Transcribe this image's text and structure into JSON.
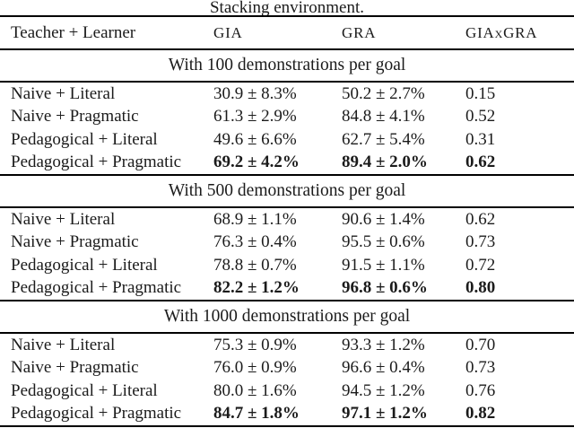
{
  "page": {
    "background": "#ffffff",
    "text_color": "#1b1b1b",
    "rule_color": "#000000"
  },
  "table": {
    "caption": "Stacking environment.",
    "columns": [
      "Teacher + Learner",
      "GIA",
      "GRA",
      "GIAxGRA"
    ],
    "sections": [
      {
        "header": "With 100 demonstrations per goal",
        "rows": [
          {
            "teacher_learner": "Naive + Literal",
            "gia": "30.9 ± 8.3%",
            "gra": "50.2 ± 2.7%",
            "giaxgra": "0.15",
            "bold": false
          },
          {
            "teacher_learner": "Naive + Pragmatic",
            "gia": "61.3 ± 2.9%",
            "gra": "84.8 ± 4.1%",
            "giaxgra": "0.52",
            "bold": false
          },
          {
            "teacher_learner": "Pedagogical + Literal",
            "gia": "49.6 ± 6.6%",
            "gra": "62.7 ± 5.4%",
            "giaxgra": "0.31",
            "bold": false
          },
          {
            "teacher_learner": "Pedagogical + Pragmatic",
            "gia": "69.2 ± 4.2%",
            "gra": "89.4 ± 2.0%",
            "giaxgra": "0.62",
            "bold": true
          }
        ]
      },
      {
        "header": "With 500 demonstrations per goal",
        "rows": [
          {
            "teacher_learner": "Naive + Literal",
            "gia": "68.9 ± 1.1%",
            "gra": "90.6 ± 1.4%",
            "giaxgra": "0.62",
            "bold": false
          },
          {
            "teacher_learner": "Naive + Pragmatic",
            "gia": "76.3 ± 0.4%",
            "gra": "95.5 ± 0.6%",
            "giaxgra": "0.73",
            "bold": false
          },
          {
            "teacher_learner": "Pedagogical + Literal",
            "gia": "78.8 ± 0.7%",
            "gra": "91.5 ± 1.1%",
            "giaxgra": "0.72",
            "bold": false
          },
          {
            "teacher_learner": "Pedagogical + Pragmatic",
            "gia": "82.2 ± 1.2%",
            "gra": "96.8 ± 0.6%",
            "giaxgra": "0.80",
            "bold": true
          }
        ]
      },
      {
        "header": "With 1000 demonstrations per goal",
        "rows": [
          {
            "teacher_learner": "Naive + Literal",
            "gia": "75.3 ± 0.9%",
            "gra": "93.3 ± 1.2%",
            "giaxgra": "0.70",
            "bold": false
          },
          {
            "teacher_learner": "Naive + Pragmatic",
            "gia": "76.0 ± 0.9%",
            "gra": "96.6 ± 0.4%",
            "giaxgra": "0.73",
            "bold": false
          },
          {
            "teacher_learner": "Pedagogical + Literal",
            "gia": "80.0 ± 1.6%",
            "gra": "94.5 ± 1.2%",
            "giaxgra": "0.76",
            "bold": false
          },
          {
            "teacher_learner": "Pedagogical + Pragmatic",
            "gia": "84.7 ± 1.8%",
            "gra": "97.1 ± 1.2%",
            "giaxgra": "0.82",
            "bold": true
          }
        ]
      }
    ]
  }
}
